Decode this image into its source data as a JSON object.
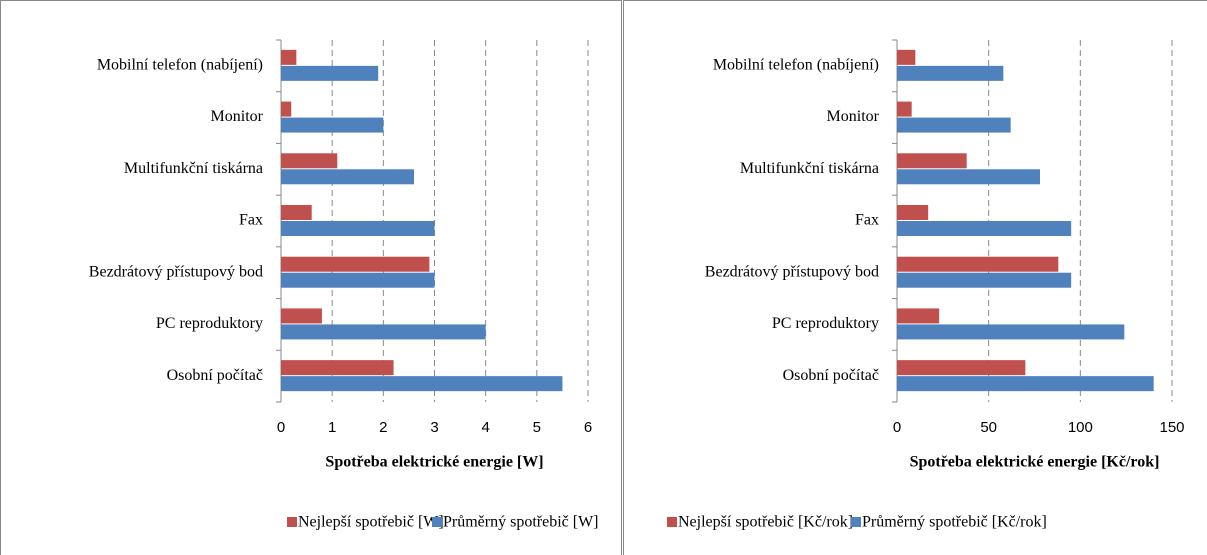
{
  "chart_data": [
    {
      "type": "barh",
      "categories": [
        "Mobilní telefon (nabíjení)",
        "Monitor",
        "Multifunkční tiskárna",
        "Fax",
        "Bezdrátový přístupový bod",
        "PC reproduktory",
        "Osobní počítač"
      ],
      "series": [
        {
          "name": "Nejlepší spotřebič [W]",
          "color": "#c0504d",
          "values": [
            0.3,
            0.2,
            1.1,
            0.6,
            2.9,
            0.8,
            2.2
          ]
        },
        {
          "name": "Průměrný spotřebič [W]",
          "color": "#4f81bd",
          "values": [
            1.9,
            2.0,
            2.6,
            3.0,
            3.0,
            4.0,
            5.5
          ]
        }
      ],
      "xlabel": "Spotřeba elektrické energie [W]",
      "xlim": [
        0,
        6
      ],
      "xticks": [
        0,
        1,
        2,
        3,
        4,
        5,
        6
      ],
      "grid": true,
      "legend": "bottom"
    },
    {
      "type": "barh",
      "categories": [
        "Mobilní telefon (nabíjení)",
        "Monitor",
        "Multifunkční tiskárna",
        "Fax",
        "Bezdrátový přístupový bod",
        "PC reproduktory",
        "Osobní počítač"
      ],
      "series": [
        {
          "name": "Nejlepší spotřebič [Kč/rok]",
          "color": "#c0504d",
          "values": [
            10,
            8,
            38,
            17,
            88,
            23,
            70
          ]
        },
        {
          "name": "Průměrný spotřebič [Kč/rok]",
          "color": "#4f81bd",
          "values": [
            58,
            62,
            78,
            95,
            95,
            124,
            140
          ]
        }
      ],
      "xlabel": "Spotřeba elektrické energie [Kč/rok]",
      "xlim": [
        0,
        150
      ],
      "xticks": [
        0,
        50,
        100,
        150
      ],
      "grid": true,
      "legend": "bottom"
    }
  ]
}
